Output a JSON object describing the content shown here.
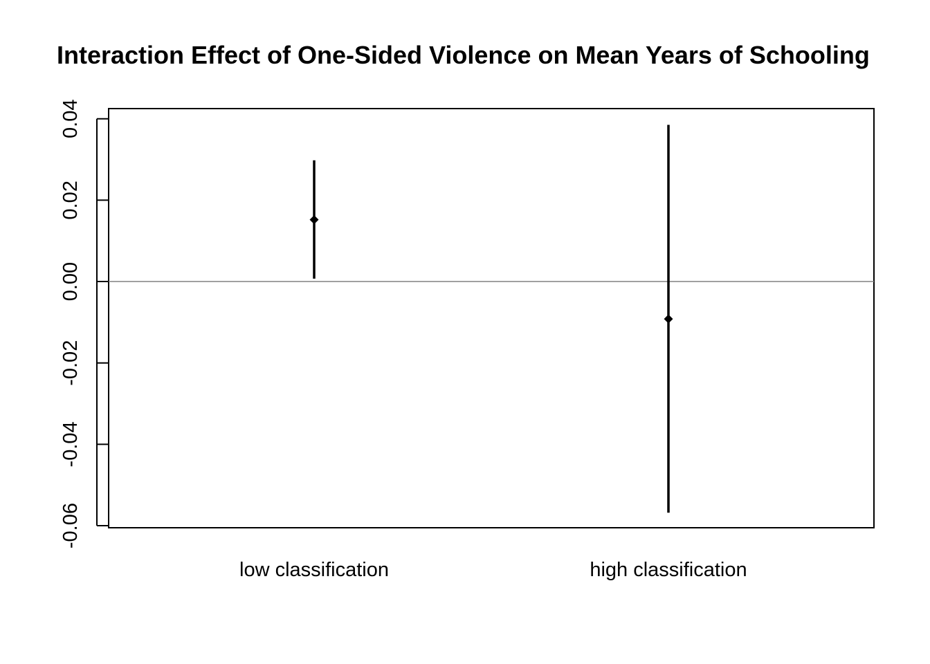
{
  "chart_data": {
    "type": "errorbar",
    "title": "Interaction Effect of One-Sided Violence on Mean Years of Schooling",
    "xlabel": "",
    "ylabel": "",
    "categories": [
      "low classification",
      "high classification"
    ],
    "points": [
      {
        "category": "low classification",
        "estimate": 0.0152,
        "lower": 0.0007,
        "upper": 0.0298
      },
      {
        "category": "high classification",
        "estimate": -0.0092,
        "lower": -0.0568,
        "upper": 0.0385
      }
    ],
    "ylim": [
      -0.0605,
      0.0425
    ],
    "yticks": [
      -0.06,
      -0.04,
      -0.02,
      0.0,
      0.02,
      0.04
    ],
    "ytick_labels": [
      "-0.06",
      "-0.04",
      "-0.02",
      "0.00",
      "0.02",
      "0.04"
    ],
    "reference_line": 0,
    "grid": false,
    "colors": {
      "marks": "#000000",
      "reference_line": "#808080",
      "frame": "#000000"
    }
  }
}
